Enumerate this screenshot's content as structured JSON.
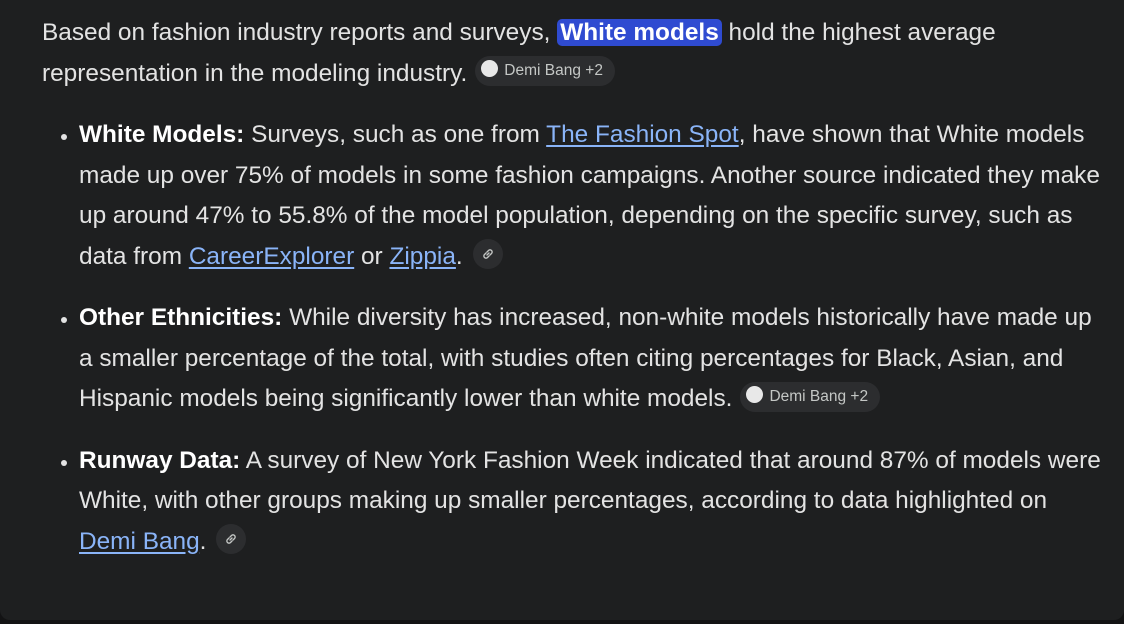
{
  "intro": {
    "before": "Based on fashion industry reports and surveys, ",
    "highlight": "White models",
    "after": " hold the highest average representation in the modeling industry.",
    "source_chip": "Demi Bang +2"
  },
  "bullets": [
    {
      "label": "White Models:",
      "parts": [
        {
          "text": " Surveys, such as one from "
        },
        {
          "link": "The Fashion Spot"
        },
        {
          "text": ", have shown that White models made up over 75% of models in some fashion campaigns. Another source indicated they make up around 47% to 55.8% of the model population, depending on the specific survey, such as data from "
        },
        {
          "link": "CareerExplorer"
        },
        {
          "text": " or "
        },
        {
          "link": "Zippia"
        },
        {
          "text": "."
        }
      ]
    },
    {
      "label": "Other Ethnicities:",
      "parts": [
        {
          "text": " While diversity has increased, non-white models historically have made up a smaller percentage of the total, with studies often citing percentages for Black, Asian, and Hispanic models being significantly lower than white models."
        },
        {
          "chip": "Demi Bang +2"
        }
      ]
    },
    {
      "label": "Runway Data:",
      "parts": [
        {
          "text": " A survey of New York Fashion Week indicated that around 87% of models were White, with other groups making up smaller percentages, according to data highlighted on "
        },
        {
          "link": "Demi Bang"
        },
        {
          "text": "."
        }
      ]
    }
  ]
}
